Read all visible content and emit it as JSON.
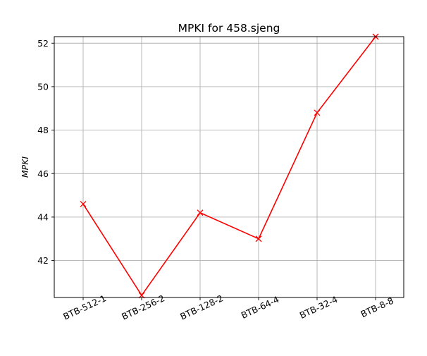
{
  "chart_data": {
    "type": "line",
    "title": "MPKI for 458.sjeng",
    "xlabel": "",
    "ylabel": "MPKI",
    "categories": [
      "BTB-512-1",
      "BTB-256-2",
      "BTB-128-2",
      "BTB-64-4",
      "BTB-32-4",
      "BTB-8-8"
    ],
    "series": [
      {
        "values": [
          44.6,
          40.4,
          44.2,
          43.0,
          48.8,
          52.3
        ],
        "color": "#ff0000",
        "marker": "x"
      }
    ],
    "ylim": [
      40.3,
      52.3
    ],
    "yticks": [
      "42",
      "44",
      "46",
      "48",
      "50",
      "52"
    ],
    "grid": true
  }
}
